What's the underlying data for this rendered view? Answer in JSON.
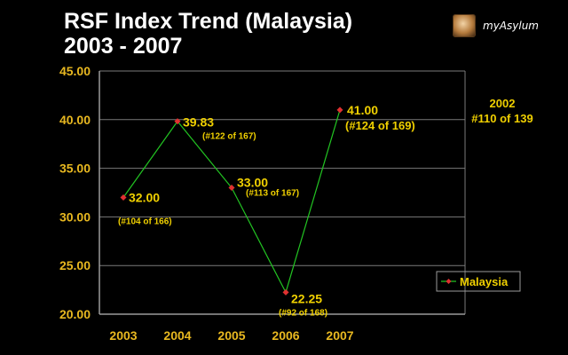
{
  "header": {
    "title_line1": "RSF Index Trend (Malaysia)",
    "title_line2": "2003 - 2007",
    "logo_text": "myAsylum"
  },
  "note": {
    "year": "2002",
    "rank": "#110 of 139"
  },
  "chart_data": {
    "type": "line",
    "title": "RSF Index Trend (Malaysia) 2003 - 2007",
    "categories": [
      "2003",
      "2004",
      "2005",
      "2006",
      "2007"
    ],
    "y_ticks": [
      "45.00",
      "40.00",
      "35.00",
      "30.00",
      "25.00",
      "20.00"
    ],
    "ylim": [
      20,
      45
    ],
    "grid": true,
    "legend": "right",
    "series": [
      {
        "name": "Malaysia",
        "values": [
          32.0,
          39.83,
          33.0,
          22.25,
          41.0
        ],
        "value_labels": [
          "32.00",
          "39.83",
          "33.00",
          "22.25",
          "41.00"
        ],
        "rank_labels": [
          "(#104 of 166)",
          "(#122 of 167)",
          "(#113 of 167)",
          "(#92 of 168)",
          "(#124 of 169)"
        ]
      }
    ],
    "colors": {
      "line": "#22c422",
      "marker": "#e03030",
      "axis": "#9a9a9a",
      "grid": "#7a7a7a",
      "labels": "#f0d000",
      "ticks": "#e8b820"
    }
  }
}
